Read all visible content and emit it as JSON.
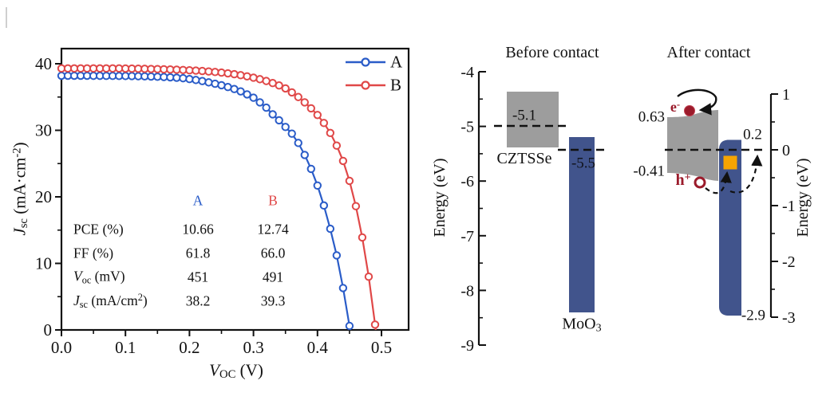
{
  "ui": {
    "colors": {
      "blue": "#2a5cc8",
      "red": "#e04848",
      "navy": "#41548c",
      "gray": "#9d9d9d",
      "orange": "#f6a402",
      "dark_red": "#9b1b2b",
      "text": "#111111"
    },
    "jv": {
      "legend": [
        {
          "label": "A",
          "color": "#2a5cc8"
        },
        {
          "label": "B",
          "color": "#e04848"
        }
      ],
      "xlabel_parts": [
        {
          "t": "V",
          "s": "i"
        },
        {
          "t": "OC",
          "s": "sub"
        },
        {
          "t": " (V)"
        }
      ],
      "ylabel_parts": [
        {
          "t": "J",
          "s": "i"
        },
        {
          "t": "sc",
          "s": "sub"
        },
        {
          "t": " (mA·cm",
          "s": ""
        },
        {
          "t": "-2",
          "s": "sup"
        },
        {
          "t": ")"
        }
      ],
      "table": {
        "col_headers": [
          {
            "label": "A",
            "color": "#2a5cc8"
          },
          {
            "label": "B",
            "color": "#e04848"
          }
        ],
        "rows": [
          {
            "label_parts": [
              {
                "t": "PCE (%)"
              }
            ],
            "a": "10.66",
            "b": "12.74"
          },
          {
            "label_parts": [
              {
                "t": "FF (%)"
              }
            ],
            "a": "61.8",
            "b": "66.0"
          },
          {
            "label_parts": [
              {
                "t": "V",
                "s": "i"
              },
              {
                "t": "oc",
                "s": "sub"
              },
              {
                "t": " (mV)"
              }
            ],
            "a": "451",
            "b": "491"
          },
          {
            "label_parts": [
              {
                "t": "J",
                "s": "i"
              },
              {
                "t": "sc",
                "s": "sub"
              },
              {
                "t": " (mA/cm"
              },
              {
                "t": "2",
                "s": "sup"
              },
              {
                "t": ")"
              }
            ],
            "a": "38.2",
            "b": "39.3"
          }
        ]
      }
    },
    "band": {
      "title_before": "Before contact",
      "title_after": "After contact",
      "energy_label_left": "Energy (eV)",
      "energy_label_right": "Energy (eV)",
      "cztsse_label": "CZTSSe",
      "moo3_parts": [
        {
          "t": "MoO"
        },
        {
          "t": "3",
          "s": "sub"
        }
      ],
      "fermi_cztsse_label": "-5.1",
      "fermi_moo3_label": "-5.5",
      "cbm_label": "0.63",
      "vbm_label": "-0.41",
      "moo3_top_label": "0.2",
      "moo3_bottom_label": "-2.9",
      "electron_parts": [
        {
          "t": "e"
        },
        {
          "t": "-",
          "s": "sup"
        }
      ],
      "hole_parts": [
        {
          "t": "h"
        },
        {
          "t": "+",
          "s": "sup"
        }
      ]
    }
  },
  "chart_data": [
    {
      "type": "line",
      "title": "",
      "xlabel": "V_OC (V)",
      "ylabel": "Jsc (mA·cm^-2)",
      "xlim": [
        0,
        0.54
      ],
      "ylim": [
        0,
        42.3
      ],
      "grid": false,
      "legend_position": "top-right",
      "marker": "open-circle",
      "xticks": [
        0,
        0.1,
        0.2,
        0.3,
        0.4,
        0.5
      ],
      "xtick_labels": [
        "0.0",
        "0.1",
        "0.2",
        "0.3",
        "0.4",
        "0.5"
      ],
      "yticks": [
        0,
        10,
        20,
        30,
        40
      ],
      "ytick_labels": [
        "0",
        "10",
        "20",
        "30",
        "40"
      ],
      "x_start": 0,
      "x_step": 0.01,
      "series": [
        {
          "name": "A",
          "color": "#2a5cc8",
          "voc_v": 0.451,
          "jsc_ma_cm2": 38.2,
          "ff_pct": 61.8,
          "pce_pct": 10.66,
          "values": [
            38.2,
            38.2,
            38.2,
            38.2,
            38.2,
            38.19,
            38.19,
            38.18,
            38.18,
            38.17,
            38.16,
            38.15,
            38.13,
            38.11,
            38.08,
            38.05,
            38.01,
            37.96,
            37.9,
            37.83,
            37.7,
            37.56,
            37.4,
            37.2,
            37.0,
            36.77,
            36.5,
            36.2,
            35.85,
            35.4,
            34.9,
            34.2,
            33.4,
            32.4,
            31.5,
            30.5,
            29.5,
            28.1,
            26.3,
            24.2,
            21.7,
            18.7,
            15.2,
            11.2,
            6.3,
            0.6
          ]
        },
        {
          "name": "B",
          "color": "#e04848",
          "voc_v": 0.491,
          "jsc_ma_cm2": 39.3,
          "ff_pct": 66.0,
          "pce_pct": 12.74,
          "values": [
            39.3,
            39.3,
            39.3,
            39.3,
            39.3,
            39.3,
            39.3,
            39.3,
            39.3,
            39.3,
            39.28,
            39.27,
            39.26,
            39.24,
            39.22,
            39.2,
            39.17,
            39.14,
            39.11,
            39.07,
            39.02,
            38.97,
            38.91,
            38.84,
            38.76,
            38.67,
            38.56,
            38.43,
            38.28,
            38.11,
            37.91,
            37.68,
            37.41,
            37.1,
            36.74,
            36.3,
            35.7,
            35.0,
            34.2,
            33.3,
            32.3,
            31.1,
            29.6,
            27.7,
            25.4,
            22.4,
            18.6,
            13.9,
            8.0,
            0.8
          ]
        }
      ]
    },
    {
      "type": "band_diagram",
      "left_axis": {
        "label": "Energy (eV)",
        "range": [
          -4,
          -9
        ],
        "ticks": [
          -4,
          -5,
          -6,
          -7,
          -8,
          -9
        ],
        "tick_labels": [
          "-4",
          "-5",
          "-6",
          "-7",
          "-8",
          "-9"
        ]
      },
      "right_axis": {
        "label": "Energy (eV)",
        "range": [
          1,
          -3
        ],
        "ticks": [
          1,
          0,
          -1,
          -2,
          -3
        ],
        "tick_labels": [
          "1",
          "0",
          "-1",
          "-2",
          "-3"
        ]
      },
      "panels": [
        {
          "title": "Before contact",
          "cztsse_band_ev": [
            -4.4,
            -5.4
          ],
          "cztsse_fermi_ev": -5.1,
          "moo3_top_ev": -5.2,
          "moo3_bottom_ev": -8.4,
          "moo3_fermi_ev": -5.5
        },
        {
          "title": "After contact",
          "fermi_ev": 0,
          "cbm_offset_ev": 0.63,
          "vbm_offset_ev": -0.41,
          "moo3_top_ev": 0.2,
          "moo3_bottom_ev": -2.9,
          "carriers": [
            "electron",
            "hole"
          ]
        }
      ]
    }
  ]
}
